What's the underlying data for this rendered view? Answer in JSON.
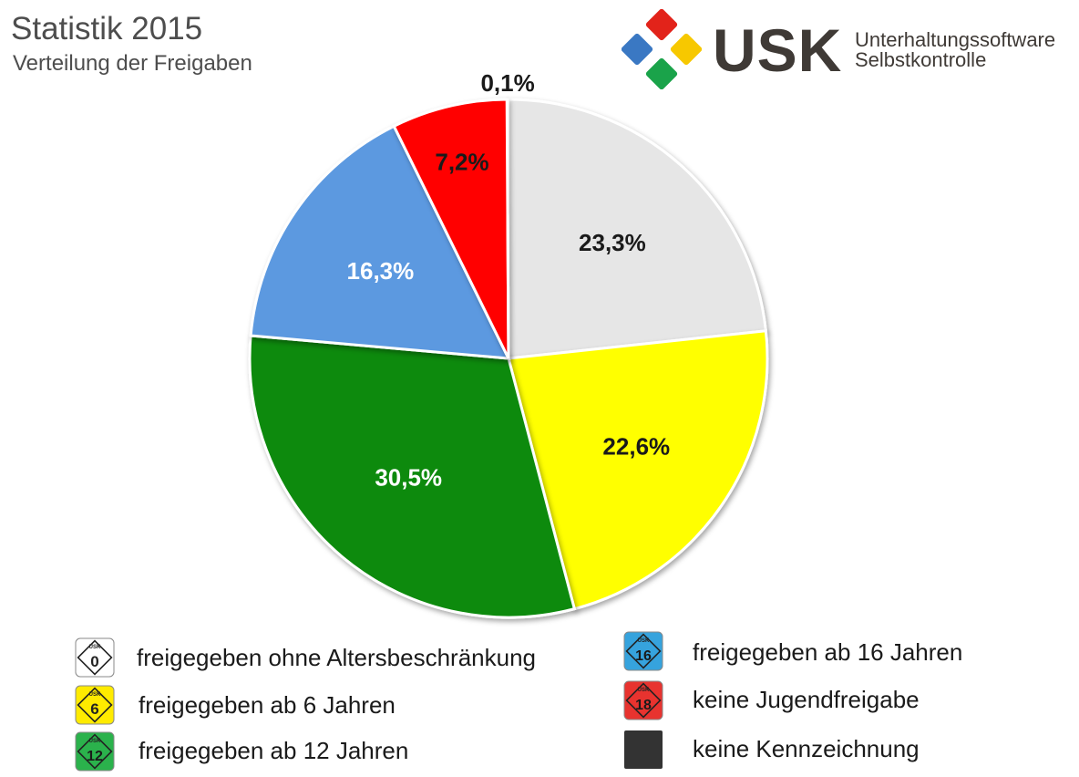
{
  "header": {
    "title": "Statistik 2015",
    "subtitle": "Verteilung der Freigaben"
  },
  "logo": {
    "abbr": "USK",
    "line1": "Unterhaltungssoftware",
    "line2": "Selbstkontrolle",
    "mark_colors": [
      "#e2231a",
      "#f7c800",
      "#1aa34a",
      "#3a78c3"
    ]
  },
  "chart_data": {
    "type": "pie",
    "title": "Statistik 2015",
    "subtitle": "Verteilung der Freigaben",
    "start": "12 o'clock",
    "direction": "clockwise",
    "slices": [
      {
        "label": "freigegeben ohne Altersbeschränkung",
        "value": 23.3,
        "display": "23,3%",
        "color": "#e6e6e6",
        "text_color": "#1a1a1a"
      },
      {
        "label": "freigegeben ab 6 Jahren",
        "value": 22.6,
        "display": "22,6%",
        "color": "#ffff00",
        "text_color": "#1a1a1a"
      },
      {
        "label": "freigegeben ab 12 Jahren",
        "value": 30.5,
        "display": "30,5%",
        "color": "#0a8a0a",
        "text_color": "#ffffff"
      },
      {
        "label": "freigegeben ab 16 Jahren",
        "value": 16.3,
        "display": "16,3%",
        "color": "#5b99e0",
        "text_color": "#ffffff"
      },
      {
        "label": "keine Jugendfreigabe",
        "value": 7.2,
        "display": "7,2%",
        "color": "#ff0000",
        "text_color": "#1a1a1a"
      },
      {
        "label": "keine Kennzeichnung",
        "value": 0.1,
        "display": "0,1%",
        "color": "#333333",
        "text_color": "#1a1a1a"
      }
    ]
  },
  "legend": [
    {
      "label": "freigegeben ohne Altersbeschränkung",
      "badge": "0",
      "badge_color": "#ffffff",
      "badge_text_color": "#222222",
      "icon": "usk-0-badge-icon"
    },
    {
      "label": "freigegeben ab 6 Jahren",
      "badge": "6",
      "badge_color": "#ffeb00",
      "badge_text_color": "#222222",
      "icon": "usk-6-badge-icon"
    },
    {
      "label": "freigegeben ab 12 Jahren",
      "badge": "12",
      "badge_color": "#2bb24c",
      "badge_text_color": "#1a1a1a",
      "icon": "usk-12-badge-icon"
    },
    {
      "label": "freigegeben ab 16 Jahren",
      "badge": "16",
      "badge_color": "#36a3dd",
      "badge_text_color": "#1a1a1a",
      "icon": "usk-16-badge-icon"
    },
    {
      "label": "keine Jugendfreigabe",
      "badge": "18",
      "badge_color": "#e8332f",
      "badge_text_color": "#1a1a1a",
      "icon": "usk-18-badge-icon"
    },
    {
      "label": "keine Kennzeichnung",
      "badge": "",
      "badge_color": "#333333",
      "badge_text_color": "#333333",
      "icon": "no-rating-square-icon"
    }
  ],
  "badge_caption": "USK"
}
